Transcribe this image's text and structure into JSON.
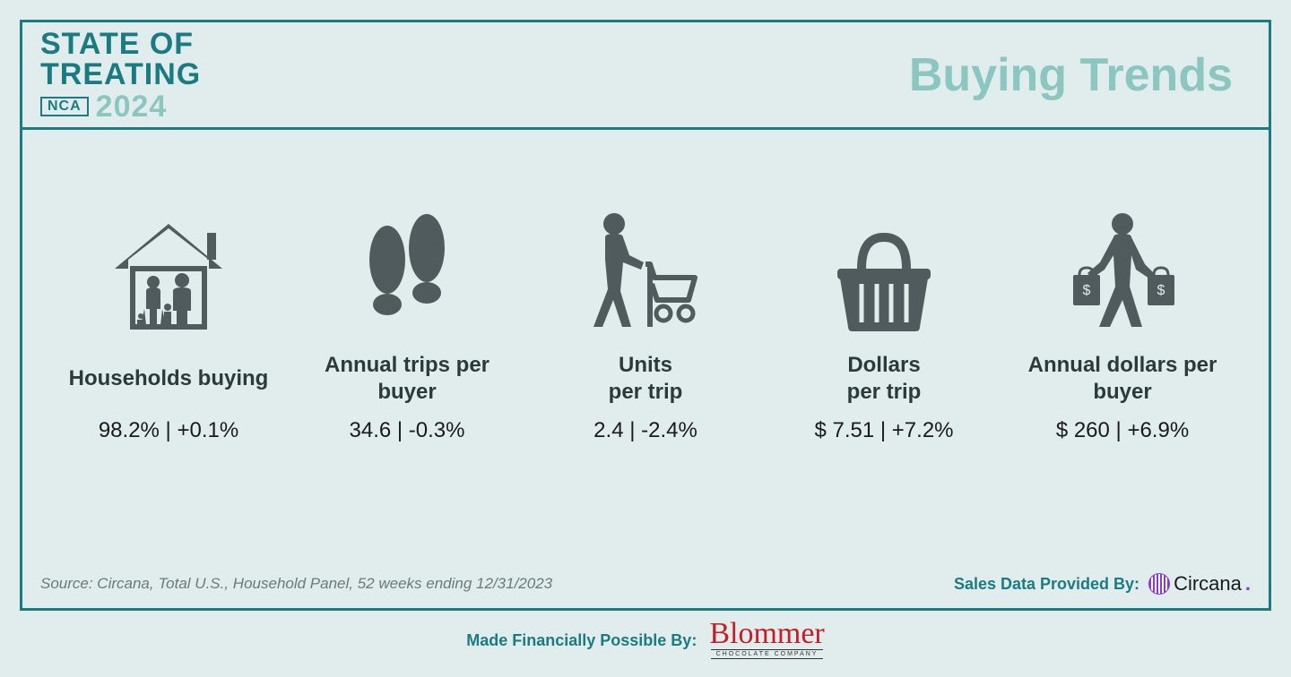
{
  "header": {
    "logo_line1": "STATE OF",
    "logo_line2": "TREATING",
    "nca_badge": "NCA",
    "year": "2024",
    "page_title": "Buying Trends"
  },
  "metrics": [
    {
      "icon": "house-family",
      "label": "Households buying",
      "value": "98.2% | +0.1%"
    },
    {
      "icon": "footprints",
      "label": "Annual trips per buyer",
      "value": "34.6 | -0.3%"
    },
    {
      "icon": "shopper-cart",
      "label": "Units\nper trip",
      "value": "2.4 | -2.4%"
    },
    {
      "icon": "basket",
      "label": "Dollars\nper trip",
      "value": "$ 7.51 | +7.2%"
    },
    {
      "icon": "shopper-bags",
      "label": "Annual dollars per buyer",
      "value": "$ 260 | +6.9%"
    }
  ],
  "footer": {
    "source": "Source: Circana, Total U.S., Household Panel, 52 weeks ending 12/31/2023",
    "provider_label": "Sales Data Provided By:",
    "provider_name": "Circana",
    "sponsor_label": "Made Financially Possible By:",
    "sponsor_name": "Blommer",
    "sponsor_sub": "CHOCOLATE COMPANY"
  },
  "colors": {
    "background": "#e0edec",
    "border": "#1a7b83",
    "accent_light": "#8cc6c1",
    "icon": "#4f5b5d",
    "text_dark": "#2c3a3c",
    "sponsor_red": "#c41e26",
    "circana_purple": "#8a3dc4"
  }
}
